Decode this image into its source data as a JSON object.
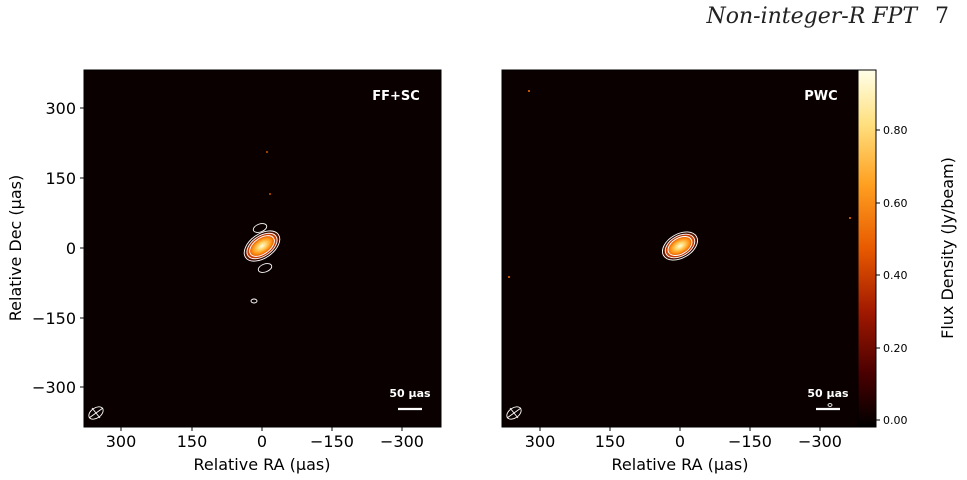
{
  "page": {
    "running_title": "Non-integer-R FPT",
    "page_number": "7"
  },
  "figure": {
    "panels": [
      {
        "label": "FF+SC",
        "scalebar_label": "50 µas",
        "xlabel": "Relative RA (µas)",
        "ylabel": "Relative Dec (µas)",
        "xticks": [
          "300",
          "150",
          "0",
          "−150",
          "−300"
        ],
        "yticks": [
          "300",
          "150",
          "0",
          "−150",
          "−300"
        ]
      },
      {
        "label": "PWC",
        "scalebar_label": "50 µas",
        "xlabel": "Relative RA (µas)",
        "xticks": [
          "300",
          "150",
          "0",
          "−150",
          "−300"
        ]
      }
    ],
    "colorbar": {
      "label": "Flux Density (Jy/beam)",
      "ticks": [
        "0.80",
        "0.60",
        "0.40",
        "0.20",
        "0.00"
      ],
      "colormap": [
        "#000000",
        "#4a0000",
        "#a01800",
        "#e85a00",
        "#ffa020",
        "#ffe080",
        "#ffffe8"
      ]
    }
  },
  "chart_data": {
    "type": "heatmap",
    "xlabel": "Relative RA (µas)",
    "ylabel": "Relative Dec (µas)",
    "xlim": [
      380,
      -380
    ],
    "ylim": [
      -380,
      380
    ],
    "colorbar_label": "Flux Density (Jy/beam)",
    "color_range": [
      0.0,
      0.97
    ],
    "panels": [
      {
        "name": "FF+SC",
        "peak_flux": 0.97,
        "peak_position": [
          0,
          0
        ]
      },
      {
        "name": "PWC",
        "peak_flux": 0.97,
        "peak_position": [
          0,
          0
        ]
      }
    ]
  }
}
